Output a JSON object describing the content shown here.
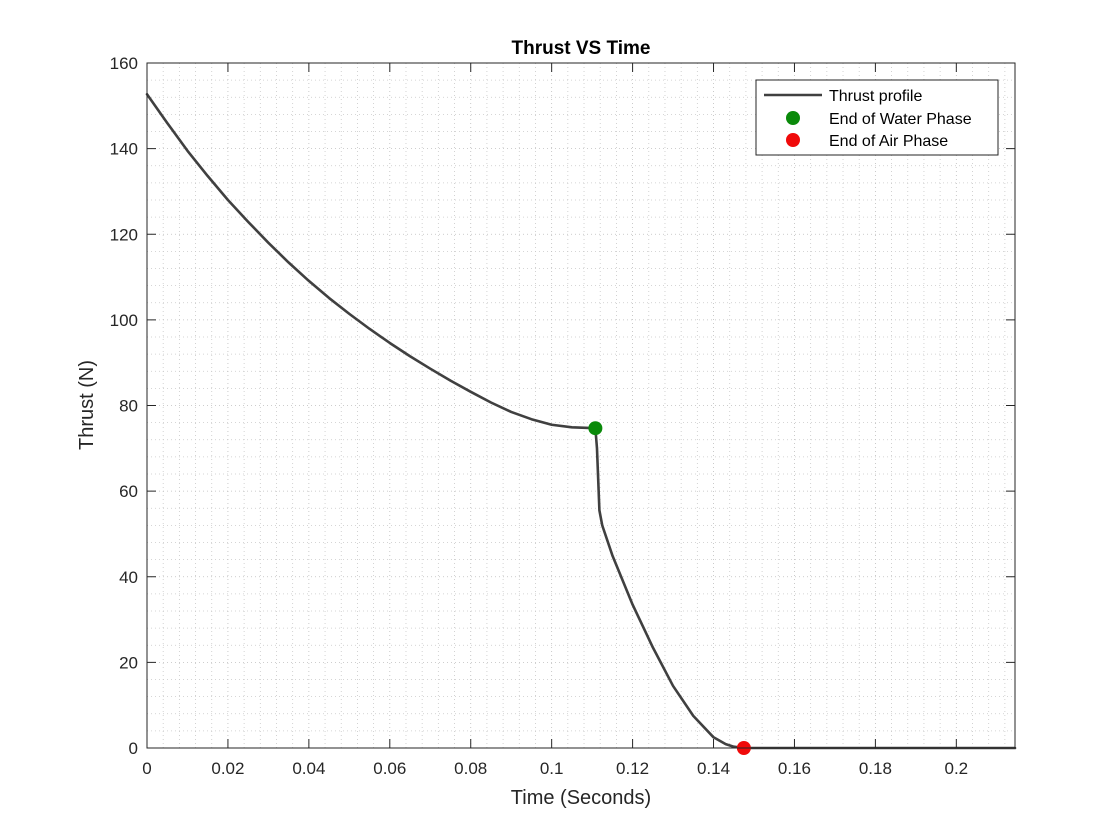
{
  "chart_data": {
    "type": "line",
    "title": "Thrust VS Time",
    "xlabel": "Time (Seconds)",
    "ylabel": "Thrust (N)",
    "xlim": [
      0,
      0.2145
    ],
    "ylim": [
      0,
      160
    ],
    "xticks": [
      0,
      0.02,
      0.04,
      0.06,
      0.08,
      0.1,
      0.12,
      0.14,
      0.16,
      0.18,
      0.2
    ],
    "xtick_labels": [
      "0",
      "0.02",
      "0.04",
      "0.06",
      "0.08",
      "0.1",
      "0.12",
      "0.14",
      "0.16",
      "0.18",
      "0.2"
    ],
    "yticks": [
      0,
      20,
      40,
      60,
      80,
      100,
      120,
      140,
      160
    ],
    "ytick_labels": [
      "0",
      "20",
      "40",
      "60",
      "80",
      "100",
      "120",
      "140",
      "160"
    ],
    "grid": true,
    "minor_grid": true,
    "legend_position": "top-right",
    "series": [
      {
        "name": "Thrust profile",
        "color": "#404040",
        "x": [
          0,
          0.005,
          0.01,
          0.015,
          0.02,
          0.025,
          0.03,
          0.035,
          0.04,
          0.045,
          0.05,
          0.055,
          0.06,
          0.065,
          0.07,
          0.075,
          0.08,
          0.085,
          0.09,
          0.095,
          0.1,
          0.105,
          0.1108,
          0.1112,
          0.1118,
          0.1125,
          0.115,
          0.12,
          0.125,
          0.13,
          0.135,
          0.14,
          0.143,
          0.145,
          0.1475,
          0.16,
          0.18,
          0.2,
          0.2145
        ],
        "y": [
          152.7,
          146.0,
          139.5,
          133.6,
          128.0,
          122.9,
          118.0,
          113.4,
          109.1,
          105.1,
          101.4,
          97.9,
          94.6,
          91.5,
          88.6,
          85.8,
          83.2,
          80.7,
          78.5,
          76.8,
          75.5,
          74.9,
          74.7,
          70.0,
          55.5,
          52.0,
          45.0,
          33.5,
          23.5,
          14.5,
          7.5,
          2.5,
          0.9,
          0.3,
          0.0,
          0.0,
          0.0,
          0.0,
          0.0
        ]
      }
    ],
    "markers": [
      {
        "name": "End of Water Phase",
        "color": "#0a8a0a",
        "x": 0.1108,
        "y": 74.7
      },
      {
        "name": "End of Air Phase",
        "color": "#f00a0a",
        "x": 0.1475,
        "y": 0.0
      }
    ]
  }
}
